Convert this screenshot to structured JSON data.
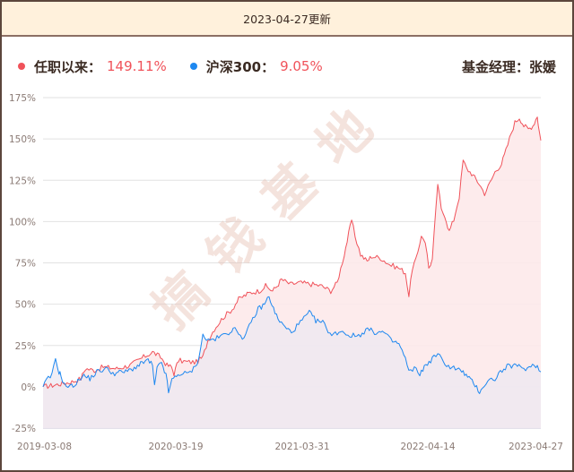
{
  "header": {
    "update_text": "2023-04-27更新"
  },
  "legend": {
    "series1": {
      "label": "任职以来：",
      "value": "149.11%",
      "color": "#f0525a"
    },
    "series2": {
      "label": "沪深300：",
      "value": "9.05%",
      "color": "#1e88f0"
    },
    "manager": "基金经理：张媛"
  },
  "watermark": "搞钱基地",
  "chart_data": {
    "type": "area",
    "title": "",
    "xlabel": "",
    "ylabel": "",
    "ylim": [
      -25,
      175
    ],
    "yticks": [
      "175%",
      "150%",
      "125%",
      "100%",
      "75%",
      "50%",
      "25%",
      "0%",
      "-25%"
    ],
    "xticks": [
      "2019-03-08",
      "2020-03-19",
      "2021-03-31",
      "2022-04-14",
      "2023-04-27"
    ],
    "grid": true,
    "legend_position": "top",
    "series": [
      {
        "name": "任职以来",
        "color": "#f0525a",
        "fill": "#fde9ea",
        "final_value": 149.11,
        "points": [
          [
            0,
            0
          ],
          [
            0.022,
            1
          ],
          [
            0.058,
            3
          ],
          [
            0.076,
            5
          ],
          [
            0.085,
            11
          ],
          [
            0.103,
            10
          ],
          [
            0.121,
            12
          ],
          [
            0.148,
            11
          ],
          [
            0.175,
            13
          ],
          [
            0.202,
            18
          ],
          [
            0.22,
            21
          ],
          [
            0.236,
            18
          ],
          [
            0.249,
            13
          ],
          [
            0.258,
            12
          ],
          [
            0.263,
            8
          ],
          [
            0.272,
            16
          ],
          [
            0.29,
            15
          ],
          [
            0.308,
            15
          ],
          [
            0.321,
            18
          ],
          [
            0.331,
            28
          ],
          [
            0.344,
            35
          ],
          [
            0.362,
            42
          ],
          [
            0.38,
            47
          ],
          [
            0.393,
            53
          ],
          [
            0.404,
            55
          ],
          [
            0.416,
            57
          ],
          [
            0.434,
            58
          ],
          [
            0.447,
            61
          ],
          [
            0.461,
            58
          ],
          [
            0.47,
            61
          ],
          [
            0.479,
            65
          ],
          [
            0.497,
            62
          ],
          [
            0.515,
            63
          ],
          [
            0.542,
            62
          ],
          [
            0.56,
            61
          ],
          [
            0.578,
            58
          ],
          [
            0.591,
            63
          ],
          [
            0.605,
            80
          ],
          [
            0.62,
            101
          ],
          [
            0.627,
            91
          ],
          [
            0.638,
            80
          ],
          [
            0.651,
            76
          ],
          [
            0.66,
            79
          ],
          [
            0.678,
            78
          ],
          [
            0.696,
            74
          ],
          [
            0.714,
            72
          ],
          [
            0.728,
            69
          ],
          [
            0.735,
            55
          ],
          [
            0.742,
            72
          ],
          [
            0.753,
            80
          ],
          [
            0.76,
            92
          ],
          [
            0.768,
            88
          ],
          [
            0.775,
            72
          ],
          [
            0.782,
            77
          ],
          [
            0.793,
            123
          ],
          [
            0.8,
            107
          ],
          [
            0.807,
            104
          ],
          [
            0.816,
            94
          ],
          [
            0.825,
            101
          ],
          [
            0.836,
            115
          ],
          [
            0.844,
            137
          ],
          [
            0.851,
            132
          ],
          [
            0.861,
            129
          ],
          [
            0.876,
            123
          ],
          [
            0.887,
            117
          ],
          [
            0.894,
            121
          ],
          [
            0.908,
            130
          ],
          [
            0.921,
            135
          ],
          [
            0.93,
            143
          ],
          [
            0.941,
            154
          ],
          [
            0.948,
            160
          ],
          [
            0.957,
            163
          ],
          [
            0.966,
            158
          ],
          [
            0.975,
            156
          ],
          [
            0.984,
            158
          ],
          [
            0.993,
            164
          ],
          [
            0.995,
            158
          ],
          [
            1.0,
            149.11
          ]
        ]
      },
      {
        "name": "沪深300",
        "color": "#1e88f0",
        "fill": "#ece8f2",
        "final_value": 9.05,
        "points": [
          [
            0,
            0
          ],
          [
            0.007,
            4
          ],
          [
            0.018,
            7
          ],
          [
            0.025,
            17
          ],
          [
            0.032,
            9
          ],
          [
            0.036,
            7
          ],
          [
            0.043,
            1
          ],
          [
            0.054,
            0
          ],
          [
            0.067,
            2
          ],
          [
            0.079,
            7
          ],
          [
            0.094,
            5
          ],
          [
            0.108,
            9
          ],
          [
            0.126,
            11
          ],
          [
            0.144,
            8
          ],
          [
            0.157,
            9
          ],
          [
            0.166,
            9
          ],
          [
            0.18,
            11
          ],
          [
            0.193,
            13
          ],
          [
            0.202,
            15
          ],
          [
            0.211,
            16
          ],
          [
            0.22,
            13
          ],
          [
            0.224,
            0
          ],
          [
            0.229,
            11
          ],
          [
            0.238,
            15
          ],
          [
            0.247,
            7
          ],
          [
            0.252,
            -3
          ],
          [
            0.259,
            4
          ],
          [
            0.274,
            8
          ],
          [
            0.292,
            8
          ],
          [
            0.306,
            12
          ],
          [
            0.313,
            18
          ],
          [
            0.321,
            31
          ],
          [
            0.332,
            28
          ],
          [
            0.346,
            29
          ],
          [
            0.36,
            31
          ],
          [
            0.373,
            33
          ],
          [
            0.382,
            35
          ],
          [
            0.393,
            33
          ],
          [
            0.404,
            29
          ],
          [
            0.418,
            39
          ],
          [
            0.432,
            47
          ],
          [
            0.445,
            50
          ],
          [
            0.454,
            55
          ],
          [
            0.463,
            47
          ],
          [
            0.472,
            41
          ],
          [
            0.486,
            36
          ],
          [
            0.499,
            33
          ],
          [
            0.517,
            39
          ],
          [
            0.535,
            45
          ],
          [
            0.548,
            40
          ],
          [
            0.562,
            39
          ],
          [
            0.58,
            31
          ],
          [
            0.598,
            34
          ],
          [
            0.616,
            31
          ],
          [
            0.634,
            31
          ],
          [
            0.652,
            35
          ],
          [
            0.666,
            33
          ],
          [
            0.685,
            33
          ],
          [
            0.699,
            28
          ],
          [
            0.715,
            26
          ],
          [
            0.728,
            17
          ],
          [
            0.735,
            9
          ],
          [
            0.746,
            11
          ],
          [
            0.757,
            8
          ],
          [
            0.769,
            13
          ],
          [
            0.782,
            17
          ],
          [
            0.793,
            20
          ],
          [
            0.804,
            15
          ],
          [
            0.818,
            12
          ],
          [
            0.832,
            11
          ],
          [
            0.847,
            8
          ],
          [
            0.859,
            4
          ],
          [
            0.868,
            1
          ],
          [
            0.877,
            -3
          ],
          [
            0.886,
            1
          ],
          [
            0.897,
            4
          ],
          [
            0.908,
            5
          ],
          [
            0.919,
            9
          ],
          [
            0.932,
            12
          ],
          [
            0.944,
            13
          ],
          [
            0.959,
            12
          ],
          [
            0.973,
            11
          ],
          [
            0.987,
            14
          ],
          [
            0.993,
            12
          ],
          [
            1.0,
            9.05
          ]
        ]
      }
    ]
  }
}
